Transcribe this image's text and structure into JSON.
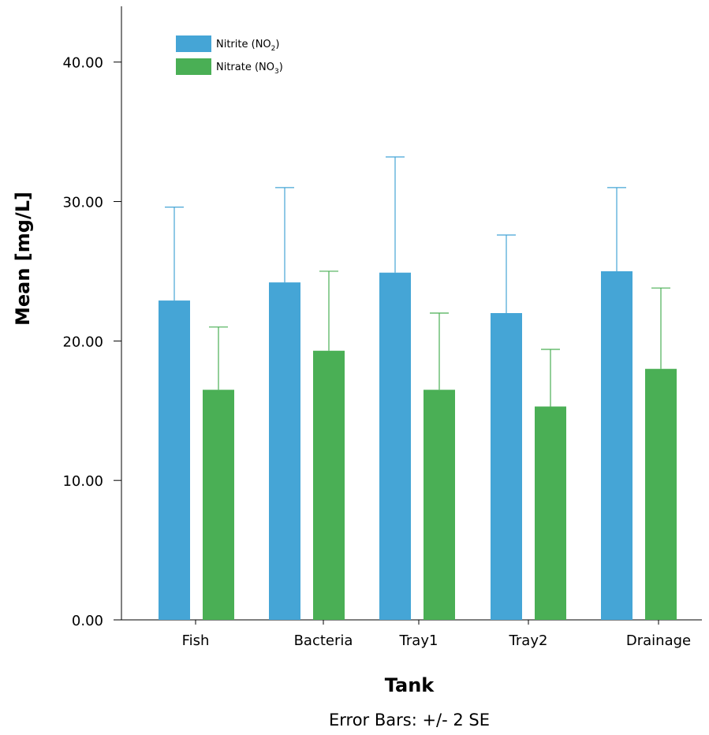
{
  "chart_data": {
    "type": "bar",
    "title": "",
    "xlabel": "Tank",
    "ylabel": "Mean [mg/L]",
    "footnote": "Error Bars: +/- 2 SE",
    "categories": [
      "Fish",
      "Bacteria",
      "Tray1",
      "Tray2",
      "Drainage"
    ],
    "ylim": [
      0,
      44
    ],
    "yticks": [
      0,
      10,
      20,
      30,
      40
    ],
    "ytick_labels": [
      "0.00",
      "10.00",
      "20.00",
      "30.00",
      "40.00"
    ],
    "grid": false,
    "legend_position": "top-left",
    "series": [
      {
        "name": "Nitrite (NO2)",
        "legend_base": "Nitrite (NO",
        "legend_sub": "2",
        "legend_close": ")",
        "color": "#45a5d6",
        "values": [
          22.9,
          24.2,
          24.9,
          22.0,
          25.0
        ],
        "error_upper": [
          29.6,
          31.0,
          33.2,
          27.6,
          31.0
        ]
      },
      {
        "name": "Nitrate (NO3)",
        "legend_base": "Nitrate (NO",
        "legend_sub": "3",
        "legend_close": ")",
        "color": "#4aaf55",
        "values": [
          16.5,
          19.3,
          16.5,
          15.3,
          18.0
        ],
        "error_upper": [
          21.0,
          25.0,
          22.0,
          19.4,
          23.8
        ]
      }
    ]
  }
}
